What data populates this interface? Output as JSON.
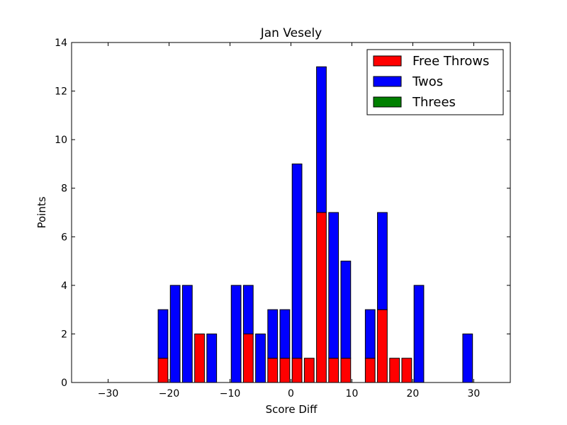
{
  "chart_data": {
    "type": "bar",
    "stacked": true,
    "title": "Jan Vesely",
    "xlabel": "Score Diff",
    "ylabel": "Points",
    "xlim": [
      -36,
      36
    ],
    "ylim": [
      0,
      14
    ],
    "xticks": [
      -30,
      -20,
      -10,
      0,
      10,
      20,
      30
    ],
    "xtick_labels": [
      "−30",
      "−20",
      "−10",
      "0",
      "10",
      "20",
      "30"
    ],
    "yticks": [
      0,
      2,
      4,
      6,
      8,
      10,
      12,
      14
    ],
    "ytick_labels": [
      "0",
      "2",
      "4",
      "6",
      "8",
      "10",
      "12",
      "14"
    ],
    "bar_width": 1.6,
    "x": [
      -35,
      -33,
      -31,
      -29,
      -27,
      -25,
      -23,
      -21,
      -19,
      -17,
      -15,
      -13,
      -11,
      -9,
      -7,
      -5,
      -3,
      -1,
      1,
      3,
      5,
      7,
      9,
      11,
      13,
      15,
      17,
      19,
      21,
      23,
      25,
      27,
      29,
      31,
      33,
      35
    ],
    "series": [
      {
        "name": "Free Throws",
        "color": "#ff0000",
        "values": [
          0,
          0,
          0,
          0,
          0,
          0,
          0,
          1,
          0,
          0,
          2,
          0,
          0,
          0,
          2,
          0,
          1,
          1,
          1,
          1,
          7,
          1,
          1,
          0,
          1,
          3,
          1,
          1,
          0,
          0,
          0,
          0,
          0,
          0,
          0,
          0
        ]
      },
      {
        "name": "Twos",
        "color": "#0000ff",
        "values": [
          0,
          0,
          0,
          0,
          0,
          0,
          0,
          2,
          4,
          4,
          0,
          2,
          0,
          4,
          2,
          2,
          2,
          2,
          8,
          0,
          6,
          6,
          4,
          0,
          2,
          4,
          0,
          0,
          4,
          0,
          0,
          0,
          2,
          0,
          0,
          0
        ]
      },
      {
        "name": "Threes",
        "color": "#008000",
        "values": [
          0,
          0,
          0,
          0,
          0,
          0,
          0,
          0,
          0,
          0,
          0,
          0,
          0,
          0,
          0,
          0,
          0,
          0,
          0,
          0,
          0,
          0,
          0,
          0,
          0,
          0,
          0,
          0,
          0,
          0,
          0,
          0,
          0,
          0,
          0,
          0
        ]
      }
    ],
    "legend": {
      "position": "top-right"
    },
    "grid": false
  }
}
